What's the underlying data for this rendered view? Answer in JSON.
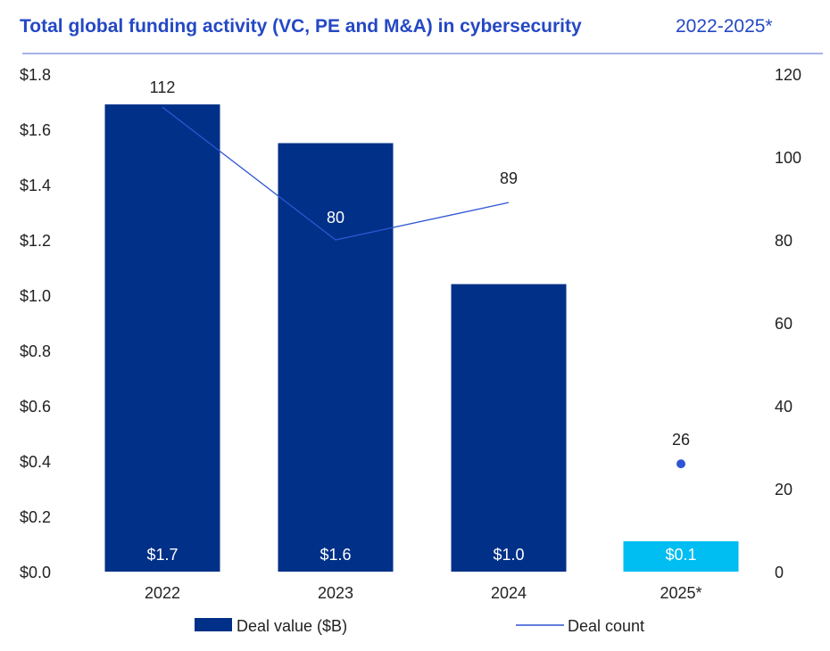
{
  "chart_data": {
    "type": "bar",
    "title": "Total global funding activity (VC, PE and M&A) in cybersecurity",
    "subtitle": "2022-2025*",
    "categories": [
      "2022",
      "2023",
      "2024",
      "2025*"
    ],
    "series": [
      {
        "name": "Deal value ($B)",
        "type": "bar",
        "axis": "left",
        "values": [
          1.69,
          1.55,
          1.04,
          0.11
        ],
        "labels": [
          "$1.7",
          "$1.6",
          "$1.0",
          "$0.1"
        ],
        "colors": [
          "#003087",
          "#003087",
          "#003087",
          "#00BDF2"
        ]
      },
      {
        "name": "Deal count",
        "type": "line",
        "axis": "right",
        "values": [
          112,
          80,
          89,
          26
        ],
        "labels": [
          "112",
          "80",
          "89",
          "26"
        ],
        "color": "#2F55D4"
      }
    ],
    "y_left": {
      "ylim": [
        0,
        1.8
      ],
      "ticks": [
        "$0.0",
        "$0.2",
        "$0.4",
        "$0.6",
        "$0.8",
        "$1.0",
        "$1.2",
        "$1.4",
        "$1.6",
        "$1.8"
      ]
    },
    "y_right": {
      "ylim": [
        0,
        120
      ],
      "ticks": [
        "0",
        "20",
        "40",
        "60",
        "80",
        "100",
        "120"
      ]
    },
    "grid": false,
    "legend_placement": "bottom"
  },
  "colors": {
    "title": "#2448C4",
    "rule": "#8C9AE0",
    "bar": "#003087",
    "bar_highlight": "#00BDF2",
    "line": "#2F55D4"
  }
}
